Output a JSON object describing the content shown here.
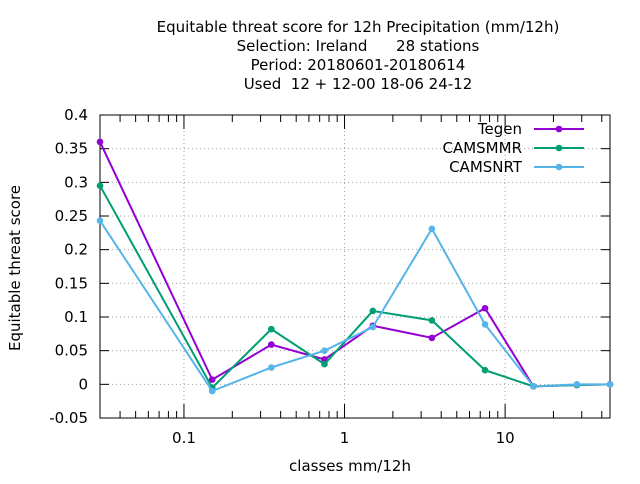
{
  "title_lines": [
    "Equitable threat score  for 12h Precipitation (mm/12h)",
    "Selection: Ireland      28 stations",
    "Period: 20180601-20180614",
    "Used  12 + 12-00 18-06 24-12"
  ],
  "chart_data": {
    "type": "line",
    "xlabel": "classes mm/12h",
    "ylabel": "Equitable threat score",
    "xscale": "log",
    "xlim": [
      0.03,
      45
    ],
    "ylim": [
      -0.05,
      0.4
    ],
    "xticks": [
      {
        "value": 0.1,
        "label": "0.1"
      },
      {
        "value": 1,
        "label": "1"
      },
      {
        "value": 10,
        "label": "10"
      }
    ],
    "yticks": [
      {
        "value": -0.05,
        "label": "-0.05"
      },
      {
        "value": 0,
        "label": "0"
      },
      {
        "value": 0.05,
        "label": "0.05"
      },
      {
        "value": 0.1,
        "label": "0.1"
      },
      {
        "value": 0.15,
        "label": "0.15"
      },
      {
        "value": 0.2,
        "label": "0.2"
      },
      {
        "value": 0.25,
        "label": "0.25"
      },
      {
        "value": 0.3,
        "label": "0.3"
      },
      {
        "value": 0.35,
        "label": "0.35"
      },
      {
        "value": 0.4,
        "label": "0.4"
      }
    ],
    "grid": true,
    "legend_position": "top-right",
    "x": [
      0.03,
      0.15,
      0.35,
      0.75,
      1.5,
      3.5,
      7.5,
      15,
      28,
      45
    ],
    "series": [
      {
        "name": "Tegen",
        "color": "#9400d3",
        "values": [
          0.36,
          0.007,
          0.059,
          0.037,
          0.087,
          0.069,
          0.113,
          -0.003,
          -0.001,
          0.0
        ]
      },
      {
        "name": "CAMSMMR",
        "color": "#009e73",
        "values": [
          0.295,
          -0.005,
          0.082,
          0.03,
          0.109,
          0.095,
          0.021,
          -0.003,
          -0.001,
          0.0
        ]
      },
      {
        "name": "CAMSNRT",
        "color": "#56b4e9",
        "values": [
          0.243,
          -0.01,
          0.025,
          0.05,
          0.085,
          0.231,
          0.089,
          -0.003,
          0.0,
          0.0
        ]
      }
    ]
  }
}
